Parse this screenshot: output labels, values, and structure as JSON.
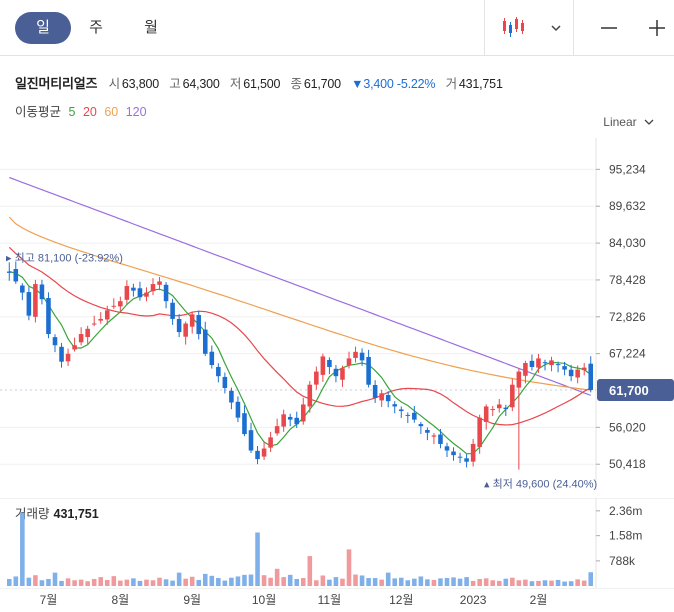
{
  "periods": [
    {
      "label": "일",
      "active": true
    },
    {
      "label": "주",
      "active": false
    },
    {
      "label": "월",
      "active": false
    }
  ],
  "icons": {
    "chart_type": "candlestick-icon",
    "dropdown": "chevron-down-icon",
    "zoom_out": "minus-icon",
    "zoom_in": "plus-icon"
  },
  "stock": {
    "name": "일진머티리얼즈",
    "open_label": "시",
    "open": "63,800",
    "high_label": "고",
    "high": "64,300",
    "low_label": "저",
    "low": "61,500",
    "close_label": "종",
    "close": "61,700",
    "change": "▼3,400 -5.22%",
    "volume_label": "거",
    "volume": "431,751"
  },
  "moving_average": {
    "label": "이동평균",
    "periods": [
      {
        "label": "5",
        "color": "#3aa53a"
      },
      {
        "label": "20",
        "color": "#e8474c"
      },
      {
        "label": "60",
        "color": "#f0a050"
      },
      {
        "label": "120",
        "color": "#9b6ee0"
      }
    ]
  },
  "scale_mode": "Linear",
  "colors": {
    "up": "#e8474c",
    "down": "#1c6fd1",
    "accent": "#4a5f96",
    "ma5": "#3aa53a",
    "ma20": "#e8474c",
    "ma60": "#f0a050",
    "ma120": "#9b6ee0"
  },
  "chart_data": {
    "type": "candlestick",
    "price_axis": {
      "ticks": [
        "95,234",
        "89,632",
        "84,030",
        "78,428",
        "72,826",
        "67,224",
        "61,700",
        "56,020",
        "50,418"
      ],
      "tick_values": [
        95234,
        89632,
        84030,
        78428,
        72826,
        67224,
        56020,
        50418
      ],
      "range": [
        46500,
        100000
      ],
      "current_price_label": "61,700",
      "current_price": 61700
    },
    "annotations": {
      "high": {
        "label": "최고 81,100 (-23.92%)",
        "value": 81100,
        "index": 0
      },
      "low": {
        "label": "최저 49,600 (24.40%)",
        "value": 49600,
        "index": 78
      }
    },
    "x_labels": [
      "7월",
      "8월",
      "9월",
      "10월",
      "11월",
      "12월",
      "2023",
      "2월"
    ],
    "x_label_index": [
      6,
      17,
      28,
      39,
      49,
      60,
      71,
      81
    ],
    "bar_count": 90,
    "closes": [
      79500,
      78200,
      76500,
      73000,
      77800,
      75500,
      70200,
      68500,
      66000,
      67200,
      68500,
      70200,
      71000,
      71800,
      72500,
      73800,
      74500,
      75200,
      77500,
      76800,
      75800,
      76500,
      77800,
      78200,
      75200,
      72500,
      70500,
      71800,
      73200,
      70200,
      67200,
      65500,
      63800,
      62000,
      59800,
      57500,
      55000,
      52500,
      51200,
      52800,
      54500,
      56200,
      58000,
      57200,
      56500,
      59500,
      62500,
      64500,
      66800,
      65200,
      63800,
      65000,
      66500,
      67500,
      66200,
      62500,
      60500,
      61200,
      60000,
      59200,
      58500,
      57800,
      57200,
      56200,
      55200,
      54800,
      53500,
      52500,
      51800,
      51500,
      50800,
      53500,
      57500,
      59200,
      58800,
      59500,
      58800,
      62500,
      64500,
      65800,
      65200,
      66500,
      65800,
      66200,
      65500,
      64800,
      63800,
      64800,
      65100,
      61700
    ],
    "volume_axis": {
      "ticks": [
        "2.36m",
        "1.58m",
        "788k"
      ],
      "tick_values": [
        2360000,
        1580000,
        788000
      ]
    },
    "volume_label": "거래량",
    "volume_value": "431,751",
    "volumes": [
      220000,
      300000,
      2300000,
      260000,
      340000,
      180000,
      220000,
      420000,
      160000,
      240000,
      180000,
      200000,
      150000,
      220000,
      280000,
      190000,
      310000,
      170000,
      200000,
      240000,
      160000,
      200000,
      180000,
      260000,
      210000,
      170000,
      420000,
      230000,
      290000,
      190000,
      380000,
      320000,
      250000,
      170000,
      260000,
      300000,
      350000,
      360000,
      1680000,
      340000,
      260000,
      540000,
      280000,
      350000,
      220000,
      250000,
      940000,
      180000,
      330000,
      200000,
      280000,
      230000,
      1150000,
      360000,
      330000,
      250000,
      250000,
      200000,
      420000,
      240000,
      260000,
      180000,
      230000,
      300000,
      210000,
      190000,
      240000,
      250000,
      270000,
      230000,
      280000,
      160000,
      220000,
      240000,
      180000,
      160000,
      230000,
      260000,
      180000,
      200000,
      150000,
      160000,
      180000,
      170000,
      190000,
      140000,
      150000,
      210000,
      170000,
      431751
    ]
  }
}
